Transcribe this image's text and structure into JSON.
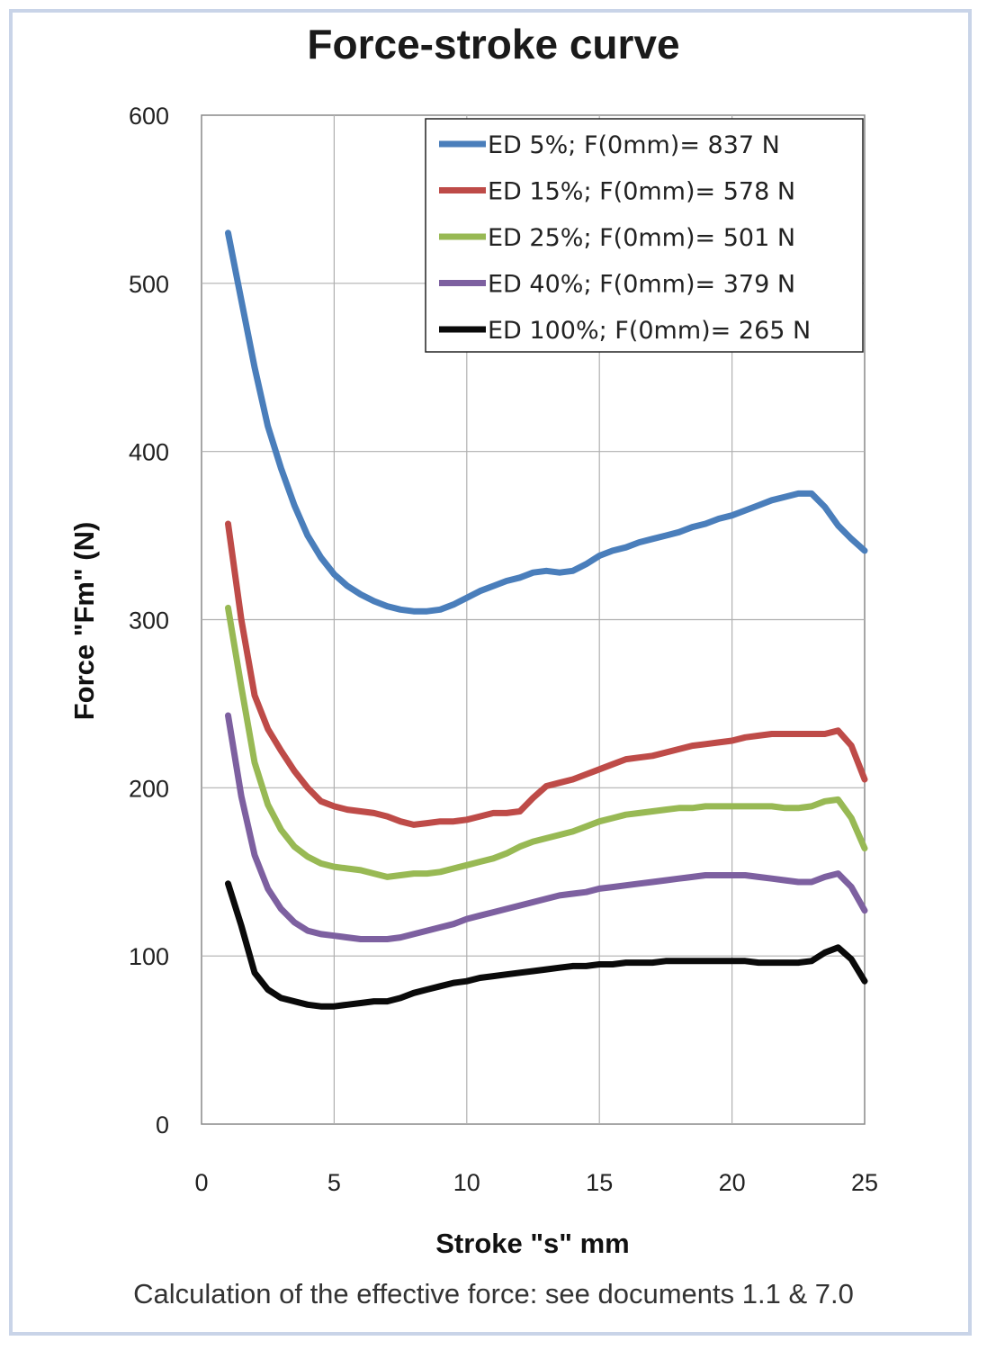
{
  "page": {
    "footer_note": "Calculation of the effective force: see documents 1.1 & 7.0"
  },
  "chart_data": {
    "type": "line",
    "title": "Force-stroke curve",
    "xlabel": "Stroke \"s\" mm",
    "ylabel": "Force \"Fm\" (N)",
    "xlim": [
      0,
      25
    ],
    "ylim": [
      0,
      600
    ],
    "xticks": [
      0,
      5,
      10,
      15,
      20,
      25
    ],
    "yticks": [
      0,
      100,
      200,
      300,
      400,
      500,
      600
    ],
    "grid": true,
    "legend_position": "top-right",
    "series": [
      {
        "name": "ED 5%; F(0mm)= 837 N",
        "color": "#4a7ebb",
        "x": [
          1,
          1.5,
          2,
          2.5,
          3,
          3.5,
          4,
          4.5,
          5,
          5.5,
          6,
          6.5,
          7,
          7.5,
          8,
          8.5,
          9,
          9.5,
          10,
          10.5,
          11,
          11.5,
          12,
          12.5,
          13,
          13.5,
          14,
          14.5,
          15,
          15.5,
          16,
          16.5,
          17,
          17.5,
          18,
          18.5,
          19,
          19.5,
          20,
          20.5,
          21,
          21.5,
          22,
          22.5,
          23,
          23.5,
          24,
          24.5,
          25
        ],
        "y": [
          530,
          490,
          450,
          415,
          390,
          368,
          350,
          337,
          327,
          320,
          315,
          311,
          308,
          306,
          305,
          305,
          306,
          309,
          313,
          317,
          320,
          323,
          325,
          328,
          329,
          328,
          329,
          333,
          338,
          341,
          343,
          346,
          348,
          350,
          352,
          355,
          357,
          360,
          362,
          365,
          368,
          371,
          373,
          375,
          375,
          367,
          356,
          348,
          341
        ]
      },
      {
        "name": "ED 15%; F(0mm)= 578 N",
        "color": "#be4b48",
        "x": [
          1,
          1.5,
          2,
          2.5,
          3,
          3.5,
          4,
          4.5,
          5,
          5.5,
          6,
          6.5,
          7,
          7.5,
          8,
          8.5,
          9,
          9.5,
          10,
          10.5,
          11,
          11.5,
          12,
          12.5,
          13,
          13.5,
          14,
          14.5,
          15,
          15.5,
          16,
          16.5,
          17,
          17.5,
          18,
          18.5,
          19,
          19.5,
          20,
          20.5,
          21,
          21.5,
          22,
          22.5,
          23,
          23.5,
          24,
          24.5,
          25
        ],
        "y": [
          357,
          300,
          255,
          235,
          222,
          210,
          200,
          192,
          189,
          187,
          186,
          185,
          183,
          180,
          178,
          179,
          180,
          180,
          181,
          183,
          185,
          185,
          186,
          194,
          201,
          203,
          205,
          208,
          211,
          214,
          217,
          218,
          219,
          221,
          223,
          225,
          226,
          227,
          228,
          230,
          231,
          232,
          232,
          232,
          232,
          232,
          234,
          225,
          205
        ]
      },
      {
        "name": "ED 25%; F(0mm)= 501 N",
        "color": "#98b954",
        "x": [
          1,
          1.5,
          2,
          2.5,
          3,
          3.5,
          4,
          4.5,
          5,
          5.5,
          6,
          6.5,
          7,
          7.5,
          8,
          8.5,
          9,
          9.5,
          10,
          10.5,
          11,
          11.5,
          12,
          12.5,
          13,
          13.5,
          14,
          14.5,
          15,
          15.5,
          16,
          16.5,
          17,
          17.5,
          18,
          18.5,
          19,
          19.5,
          20,
          20.5,
          21,
          21.5,
          22,
          22.5,
          23,
          23.5,
          24,
          24.5,
          25
        ],
        "y": [
          307,
          260,
          215,
          190,
          175,
          165,
          159,
          155,
          153,
          152,
          151,
          149,
          147,
          148,
          149,
          149,
          150,
          152,
          154,
          156,
          158,
          161,
          165,
          168,
          170,
          172,
          174,
          177,
          180,
          182,
          184,
          185,
          186,
          187,
          188,
          188,
          189,
          189,
          189,
          189,
          189,
          189,
          188,
          188,
          189,
          192,
          193,
          182,
          164
        ]
      },
      {
        "name": "ED 40%; F(0mm)= 379 N",
        "color": "#7d60a0",
        "x": [
          1,
          1.5,
          2,
          2.5,
          3,
          3.5,
          4,
          4.5,
          5,
          5.5,
          6,
          6.5,
          7,
          7.5,
          8,
          8.5,
          9,
          9.5,
          10,
          10.5,
          11,
          11.5,
          12,
          12.5,
          13,
          13.5,
          14,
          14.5,
          15,
          15.5,
          16,
          16.5,
          17,
          17.5,
          18,
          18.5,
          19,
          19.5,
          20,
          20.5,
          21,
          21.5,
          22,
          22.5,
          23,
          23.5,
          24,
          24.5,
          25
        ],
        "y": [
          243,
          195,
          160,
          140,
          128,
          120,
          115,
          113,
          112,
          111,
          110,
          110,
          110,
          111,
          113,
          115,
          117,
          119,
          122,
          124,
          126,
          128,
          130,
          132,
          134,
          136,
          137,
          138,
          140,
          141,
          142,
          143,
          144,
          145,
          146,
          147,
          148,
          148,
          148,
          148,
          147,
          146,
          145,
          144,
          144,
          147,
          149,
          141,
          127
        ]
      },
      {
        "name": "ED 100%; F(0mm)= 265 N",
        "color": "#0a0a0a",
        "x": [
          1,
          1.5,
          2,
          2.5,
          3,
          3.5,
          4,
          4.5,
          5,
          5.5,
          6,
          6.5,
          7,
          7.5,
          8,
          8.5,
          9,
          9.5,
          10,
          10.5,
          11,
          11.5,
          12,
          12.5,
          13,
          13.5,
          14,
          14.5,
          15,
          15.5,
          16,
          16.5,
          17,
          17.5,
          18,
          18.5,
          19,
          19.5,
          20,
          20.5,
          21,
          21.5,
          22,
          22.5,
          23,
          23.5,
          24,
          24.5,
          25
        ],
        "y": [
          143,
          118,
          90,
          80,
          75,
          73,
          71,
          70,
          70,
          71,
          72,
          73,
          73,
          75,
          78,
          80,
          82,
          84,
          85,
          87,
          88,
          89,
          90,
          91,
          92,
          93,
          94,
          94,
          95,
          95,
          96,
          96,
          96,
          97,
          97,
          97,
          97,
          97,
          97,
          97,
          96,
          96,
          96,
          96,
          97,
          102,
          105,
          98,
          85
        ]
      }
    ]
  }
}
